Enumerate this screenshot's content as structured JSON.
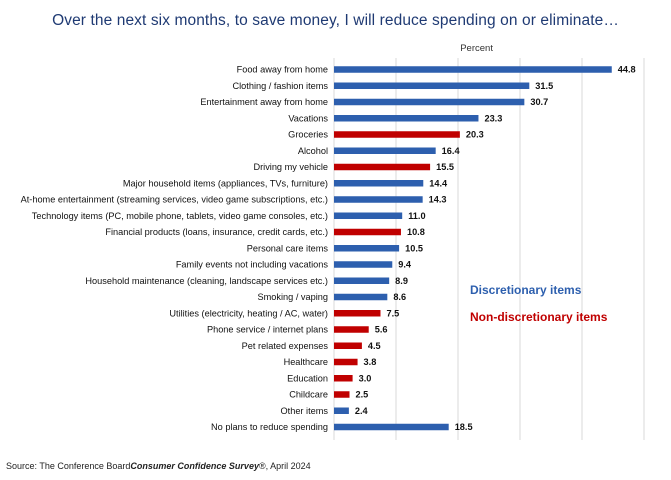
{
  "title": "Over the next six months, to save money, I will reduce spending on or eliminate…",
  "source": {
    "prefix": "Source: The Conference Board",
    "survey": "Consumer Confidence Survey",
    "suffix": "®, April 2024"
  },
  "legend": {
    "discretionary": "Discretionary items",
    "non_discretionary": "Non-discretionary items"
  },
  "colors": {
    "discretionary": "#2d5fae",
    "non_discretionary": "#c00000",
    "title": "#1f3a73",
    "grid": "#d9d9d9"
  },
  "chart_data": {
    "type": "bar",
    "orientation": "horizontal",
    "title": "Over the next six months, to save money, I will reduce spending on or eliminate…",
    "xlabel": "Percent",
    "xlim": [
      0,
      50
    ],
    "grid": true,
    "categories": [
      "Food away from home",
      "Clothing / fashion items",
      "Entertainment away from home",
      "Vacations",
      "Groceries",
      "Alcohol",
      "Driving my vehicle",
      "Major household items (appliances, TVs, furniture)",
      "At-home entertainment (streaming services, video game subscriptions, etc.)",
      "Technology items (PC, mobile phone, tablets, video game consoles, etc.)",
      "Financial products (loans, insurance, credit cards, etc.)",
      "Personal care items",
      "Family events not including vacations",
      "Household maintenance (cleaning, landscape services etc.)",
      "Smoking / vaping",
      "Utilities (electricity, heating / AC, water)",
      "Phone service / internet plans",
      "Pet related expenses",
      "Healthcare",
      "Education",
      "Childcare",
      "Other items",
      "No plans to reduce spending"
    ],
    "values": [
      44.8,
      31.5,
      30.7,
      23.3,
      20.3,
      16.4,
      15.5,
      14.4,
      14.3,
      11.0,
      10.8,
      10.5,
      9.4,
      8.9,
      8.6,
      7.5,
      5.6,
      4.5,
      3.8,
      3.0,
      2.5,
      2.4,
      18.5
    ],
    "value_labels": [
      "44.8",
      "31.5",
      "30.7",
      "23.3",
      "20.3",
      "16.4",
      "15.5",
      "14.4",
      "14.3",
      "11.0",
      "10.8",
      "10.5",
      "9.4",
      "8.9",
      "8.6",
      "7.5",
      "5.6",
      "4.5",
      "3.8",
      "3.0",
      "2.5",
      "2.4",
      "18.5"
    ],
    "groups": [
      "discretionary",
      "discretionary",
      "discretionary",
      "discretionary",
      "non_discretionary",
      "discretionary",
      "non_discretionary",
      "discretionary",
      "discretionary",
      "discretionary",
      "non_discretionary",
      "discretionary",
      "discretionary",
      "discretionary",
      "discretionary",
      "non_discretionary",
      "non_discretionary",
      "non_discretionary",
      "non_discretionary",
      "non_discretionary",
      "non_discretionary",
      "discretionary",
      "discretionary"
    ],
    "legend": [
      "Discretionary items",
      "Non-discretionary items"
    ]
  }
}
